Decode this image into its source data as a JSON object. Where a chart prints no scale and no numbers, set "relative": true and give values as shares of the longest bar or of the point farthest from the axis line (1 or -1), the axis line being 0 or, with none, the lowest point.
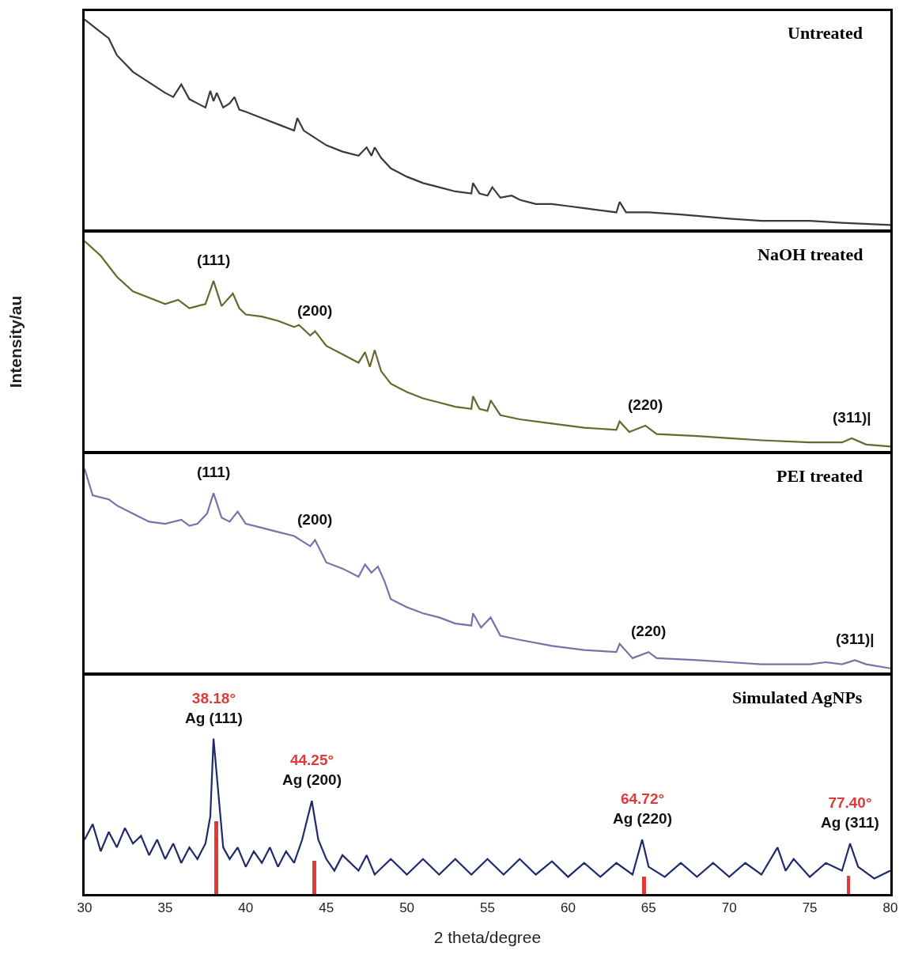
{
  "chart_data": [
    {
      "type": "line",
      "relative": true,
      "title": "Untreated",
      "xlim": [
        30,
        80
      ],
      "tick_labels": false,
      "series": [
        {
          "color": "#3a3a3a",
          "x": [
            30,
            31,
            31.5,
            32,
            33,
            34,
            35,
            35.5,
            36,
            36.5,
            37,
            37.5,
            37.8,
            38,
            38.2,
            38.6,
            39,
            39.3,
            39.6,
            40,
            41,
            42,
            43,
            43.2,
            43.6,
            44,
            45,
            46,
            47,
            47.5,
            47.8,
            48,
            48.4,
            49,
            50,
            51,
            52,
            53,
            54,
            54.1,
            54.5,
            55,
            55.3,
            55.8,
            56.5,
            57,
            58,
            59,
            60,
            61,
            62,
            63,
            63.2,
            63.6,
            65,
            67,
            70,
            72,
            75,
            77,
            80
          ],
          "values": [
            1.0,
            0.94,
            0.91,
            0.83,
            0.75,
            0.7,
            0.65,
            0.63,
            0.69,
            0.62,
            0.6,
            0.58,
            0.66,
            0.61,
            0.65,
            0.58,
            0.6,
            0.63,
            0.57,
            0.56,
            0.53,
            0.5,
            0.47,
            0.53,
            0.47,
            0.45,
            0.4,
            0.37,
            0.35,
            0.39,
            0.35,
            0.39,
            0.34,
            0.29,
            0.25,
            0.22,
            0.2,
            0.18,
            0.17,
            0.22,
            0.17,
            0.16,
            0.2,
            0.15,
            0.16,
            0.14,
            0.12,
            0.12,
            0.11,
            0.1,
            0.09,
            0.08,
            0.13,
            0.08,
            0.08,
            0.07,
            0.05,
            0.04,
            0.04,
            0.03,
            0.02
          ]
        }
      ]
    },
    {
      "type": "line",
      "relative": true,
      "title": "NaOH treated",
      "ylabel": "Intensity/au",
      "xlim": [
        30,
        80
      ],
      "tick_labels": false,
      "series": [
        {
          "color": "#67672f",
          "x": [
            30,
            31,
            32,
            33,
            34,
            35,
            35.8,
            36.5,
            37,
            37.5,
            38,
            38.5,
            39.2,
            39.6,
            40,
            41,
            42,
            43,
            43.3,
            44,
            44.3,
            45,
            46,
            47,
            47.4,
            47.7,
            48,
            48.4,
            49,
            50,
            51,
            52,
            53,
            54,
            54.1,
            54.5,
            55,
            55.2,
            55.8,
            57,
            59,
            61,
            63,
            63.2,
            63.8,
            64.8,
            65.5,
            68,
            70,
            72,
            75,
            77,
            77.6,
            78.5,
            80
          ],
          "values": [
            1.0,
            0.93,
            0.83,
            0.76,
            0.73,
            0.7,
            0.72,
            0.68,
            0.69,
            0.7,
            0.81,
            0.69,
            0.75,
            0.68,
            0.65,
            0.64,
            0.62,
            0.59,
            0.6,
            0.55,
            0.57,
            0.5,
            0.46,
            0.42,
            0.47,
            0.4,
            0.48,
            0.38,
            0.32,
            0.28,
            0.25,
            0.23,
            0.21,
            0.2,
            0.26,
            0.2,
            0.19,
            0.24,
            0.17,
            0.15,
            0.13,
            0.11,
            0.1,
            0.14,
            0.09,
            0.12,
            0.08,
            0.07,
            0.06,
            0.05,
            0.04,
            0.04,
            0.06,
            0.03,
            0.02
          ]
        }
      ],
      "annotations": [
        {
          "text": "(111)",
          "x": 38,
          "y": 0.81
        },
        {
          "text": "(200)",
          "x": 44.3,
          "y": 0.57
        },
        {
          "text": "(220)",
          "x": 64.8,
          "y": 0.12
        },
        {
          "text": "(311)|",
          "x": 77.6,
          "y": 0.06
        }
      ]
    },
    {
      "type": "line",
      "relative": true,
      "title": "PEI treated",
      "xlim": [
        30,
        80
      ],
      "tick_labels": false,
      "series": [
        {
          "color": "#7474a9",
          "x": [
            30,
            30.5,
            31.5,
            32,
            33,
            34,
            35,
            36,
            36.5,
            37,
            37.6,
            38,
            38.5,
            39,
            39.5,
            40,
            41,
            42,
            43,
            44,
            44.3,
            45,
            46,
            47,
            47.4,
            47.8,
            48.2,
            48.6,
            49,
            50,
            51,
            52,
            53,
            54,
            54.1,
            54.6,
            55.2,
            55.8,
            57,
            59,
            61,
            63,
            63.2,
            64,
            65,
            65.5,
            68,
            70,
            72,
            75,
            76,
            77,
            77.8,
            78.5,
            80
          ],
          "values": [
            1.0,
            0.87,
            0.85,
            0.82,
            0.78,
            0.74,
            0.73,
            0.75,
            0.72,
            0.73,
            0.78,
            0.88,
            0.76,
            0.74,
            0.79,
            0.73,
            0.71,
            0.69,
            0.67,
            0.62,
            0.65,
            0.54,
            0.51,
            0.47,
            0.53,
            0.49,
            0.52,
            0.45,
            0.36,
            0.32,
            0.29,
            0.27,
            0.24,
            0.23,
            0.29,
            0.22,
            0.27,
            0.18,
            0.16,
            0.13,
            0.11,
            0.1,
            0.14,
            0.07,
            0.1,
            0.07,
            0.06,
            0.05,
            0.04,
            0.04,
            0.05,
            0.04,
            0.06,
            0.04,
            0.02
          ]
        }
      ],
      "annotations": [
        {
          "text": "(111)",
          "x": 38,
          "y": 0.88
        },
        {
          "text": "(200)",
          "x": 44.3,
          "y": 0.65
        },
        {
          "text": "(220)",
          "x": 65,
          "y": 0.1
        },
        {
          "text": "(311)|",
          "x": 77.8,
          "y": 0.06
        }
      ]
    },
    {
      "type": "line",
      "relative": true,
      "title": "Simulated AgNPs",
      "xlabel": "2 theta/degree",
      "xlim": [
        30,
        80
      ],
      "xticks": [
        30,
        35,
        40,
        45,
        50,
        55,
        60,
        65,
        70,
        75,
        80
      ],
      "tick_labels": "x",
      "series": [
        {
          "color": "#1e2a6c",
          "x": [
            30,
            30.5,
            31,
            31.5,
            32,
            32.5,
            33,
            33.5,
            34,
            34.5,
            35,
            35.5,
            36,
            36.5,
            37,
            37.5,
            37.8,
            38.0,
            38.3,
            38.6,
            39,
            39.5,
            40,
            40.5,
            41,
            41.5,
            42,
            42.5,
            43,
            43.5,
            44.1,
            44.5,
            45,
            45.5,
            46,
            47,
            47.5,
            48,
            49,
            50,
            51,
            52,
            53,
            54,
            55,
            56,
            57,
            58,
            59,
            60,
            61,
            62,
            63,
            64,
            64.6,
            65,
            66,
            67,
            68,
            69,
            70,
            71,
            72,
            73,
            73.5,
            74,
            75,
            76,
            77,
            77.5,
            78,
            79,
            80
          ],
          "values": [
            0.35,
            0.45,
            0.275,
            0.4,
            0.3,
            0.425,
            0.325,
            0.375,
            0.25,
            0.35,
            0.225,
            0.325,
            0.2,
            0.3,
            0.225,
            0.325,
            0.5,
            1.0,
            0.65,
            0.3,
            0.225,
            0.3,
            0.175,
            0.275,
            0.2,
            0.3,
            0.175,
            0.275,
            0.2,
            0.35,
            0.6,
            0.35,
            0.225,
            0.15,
            0.25,
            0.15,
            0.25,
            0.125,
            0.225,
            0.125,
            0.225,
            0.125,
            0.225,
            0.125,
            0.225,
            0.125,
            0.225,
            0.125,
            0.21,
            0.11,
            0.2,
            0.11,
            0.2,
            0.125,
            0.35,
            0.175,
            0.11,
            0.2,
            0.11,
            0.2,
            0.11,
            0.2,
            0.125,
            0.3,
            0.15,
            0.225,
            0.11,
            0.2,
            0.15,
            0.325,
            0.175,
            0.1,
            0.15
          ]
        },
        {
          "type": "bar",
          "color": "#e03a3a",
          "x": [
            38.18,
            44.25,
            64.72,
            77.4
          ],
          "values": [
            0.465,
            0.21,
            0.11,
            0.115
          ]
        }
      ],
      "annotations": [
        {
          "text": "38.18°\nAg (111)",
          "x": 38.0,
          "y": 1.0
        },
        {
          "text": "44.25°\nAg (200)",
          "x": 44.1,
          "y": 0.6
        },
        {
          "text": "64.72°\nAg (220)",
          "x": 64.6,
          "y": 0.35
        },
        {
          "text": "77.40°\nAg (311)",
          "x": 77.5,
          "y": 0.325
        }
      ]
    }
  ]
}
